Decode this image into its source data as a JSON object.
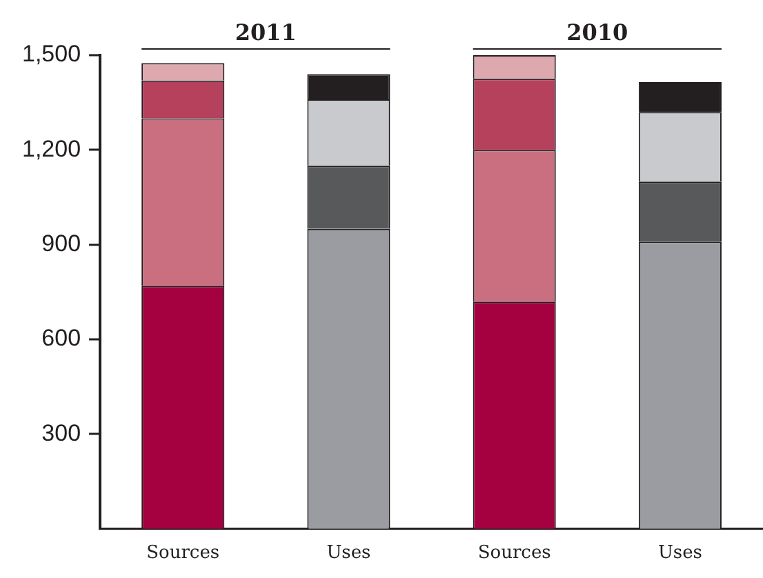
{
  "chart_data": {
    "type": "bar",
    "stacked": true,
    "categories": [
      "Sources",
      "Uses",
      "Sources",
      "Uses"
    ],
    "series": [
      {
        "colors": [
          "#a5003f",
          "#9a9ca1",
          "#a5003f",
          "#9a9ca1"
        ],
        "values": [
          770,
          950,
          720,
          910
        ]
      },
      {
        "colors": [
          "#c96f7f",
          "#58595b",
          "#c96f7f",
          "#58595b"
        ],
        "values": [
          530,
          200,
          480,
          190
        ]
      },
      {
        "colors": [
          "#b5415d",
          "#c9cacd",
          "#b5415d",
          "#c9cacd"
        ],
        "values": [
          120,
          210,
          225,
          220
        ]
      },
      {
        "colors": [
          "#dea8af",
          "#231f20",
          "#dea8af",
          "#231f20"
        ],
        "values": [
          55,
          80,
          75,
          95
        ]
      }
    ],
    "ylim": [
      0,
      1500
    ],
    "yticks": [
      {
        "value": 300,
        "label": "300"
      },
      {
        "value": 600,
        "label": "600"
      },
      {
        "value": 900,
        "label": "900"
      },
      {
        "value": 1200,
        "label": "1,200"
      },
      {
        "value": 1500,
        "label": "1,500"
      }
    ],
    "annotations": [
      "2011",
      "2010"
    ],
    "grid": false,
    "legend": false
  }
}
